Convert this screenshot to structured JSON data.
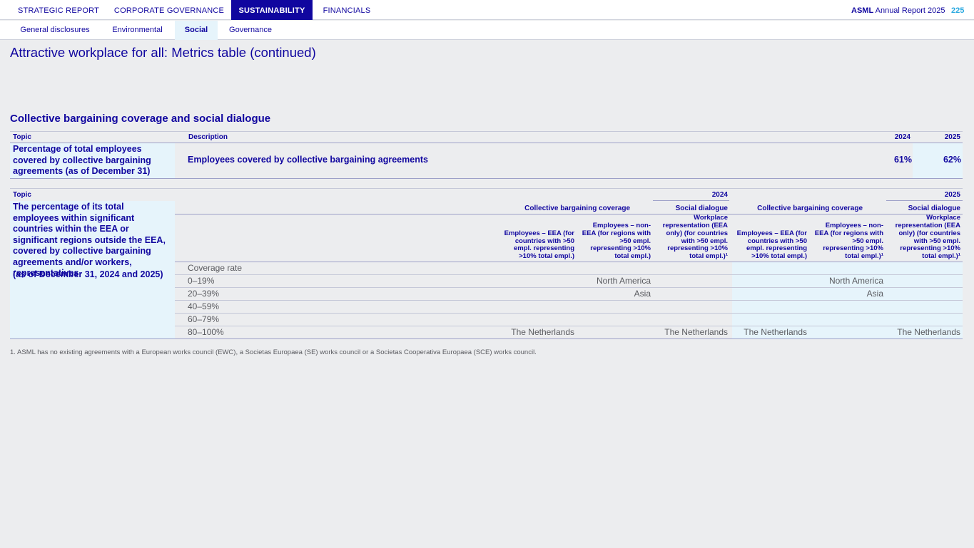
{
  "nav": {
    "tabs": [
      "STRATEGIC REPORT",
      "CORPORATE GOVERNANCE",
      "SUSTAINABILITY",
      "FINANCIALS"
    ],
    "active_tab": "SUSTAINABILITY",
    "brand_bold": "ASML",
    "brand_rest": " Annual Report 2025",
    "page_number": "225"
  },
  "subnav": {
    "items": [
      "General disclosures",
      "Environmental",
      "Social",
      "Governance"
    ],
    "active": "Social"
  },
  "page_title": "Attractive workplace for all: Metrics table (continued)",
  "section_title": "Collective bargaining coverage and social dialogue",
  "table1": {
    "headers": {
      "topic": "Topic",
      "description": "Description",
      "y2024": "2024",
      "y2025": "2025"
    },
    "topic": "Percentage of total employees covered by collective bargaining agreements (as of December 31)",
    "description": "Employees covered by collective bargaining agreements",
    "v2024": "61%",
    "v2025": "62%"
  },
  "table2": {
    "topic_header": "Topic",
    "year_2024": "2024",
    "year_2025": "2025",
    "topic_text": "The percentage of its total employees within significant countries within the EEA or significant regions outside the EEA, covered by collective bargaining agreements and/or workers, representatives",
    "topic_date": "(as of December 31, 2024 and 2025)",
    "groups": {
      "cbc_2024": "Collective bargaining coverage",
      "sd_2024": "Social dialogue",
      "cbc_2025": "Collective bargaining coverage",
      "sd_2025": "Social dialogue"
    },
    "columns": {
      "eea_2024": "Employees – EEA (for countries with >50 empl. representing >10% total empl.)",
      "noneea_2024": "Employees – non-EEA (for regions with >50 empl. representing >10% total empl.)",
      "wr_2024": "Workplace representation (EEA only) (for countries with >50 empl. representing >10% total empl.)¹",
      "eea_2025": "Employees – EEA (for countries with >50 empl. representing >10% total empl.)",
      "noneea_2025": "Employees – non-EEA (for regions with >50 empl. representing >10% total empl.)¹",
      "wr_2025": "Workplace representation (EEA only) (for countries with >50 empl. representing >10% total empl.)¹"
    },
    "coverage_label": "Coverage rate",
    "rows": [
      {
        "rate": "0–19%",
        "eea_2024": "",
        "noneea_2024": "North America",
        "wr_2024": "",
        "eea_2025": "",
        "noneea_2025": "North America",
        "wr_2025": ""
      },
      {
        "rate": "20–39%",
        "eea_2024": "",
        "noneea_2024": "Asia",
        "wr_2024": "",
        "eea_2025": "",
        "noneea_2025": "Asia",
        "wr_2025": ""
      },
      {
        "rate": "40–59%",
        "eea_2024": "",
        "noneea_2024": "",
        "wr_2024": "",
        "eea_2025": "",
        "noneea_2025": "",
        "wr_2025": ""
      },
      {
        "rate": "60–79%",
        "eea_2024": "",
        "noneea_2024": "",
        "wr_2024": "",
        "eea_2025": "",
        "noneea_2025": "",
        "wr_2025": ""
      },
      {
        "rate": "80–100%",
        "eea_2024": "The Netherlands",
        "noneea_2024": "",
        "wr_2024": "The Netherlands",
        "eea_2025": "The Netherlands",
        "noneea_2025": "",
        "wr_2025": "The Netherlands"
      }
    ]
  },
  "footnote": "1. ASML has no existing agreements with a European works council (EWC), a Societas Europaea (SE) works council or a Societas Cooperativa Europaea (SCE) works council."
}
